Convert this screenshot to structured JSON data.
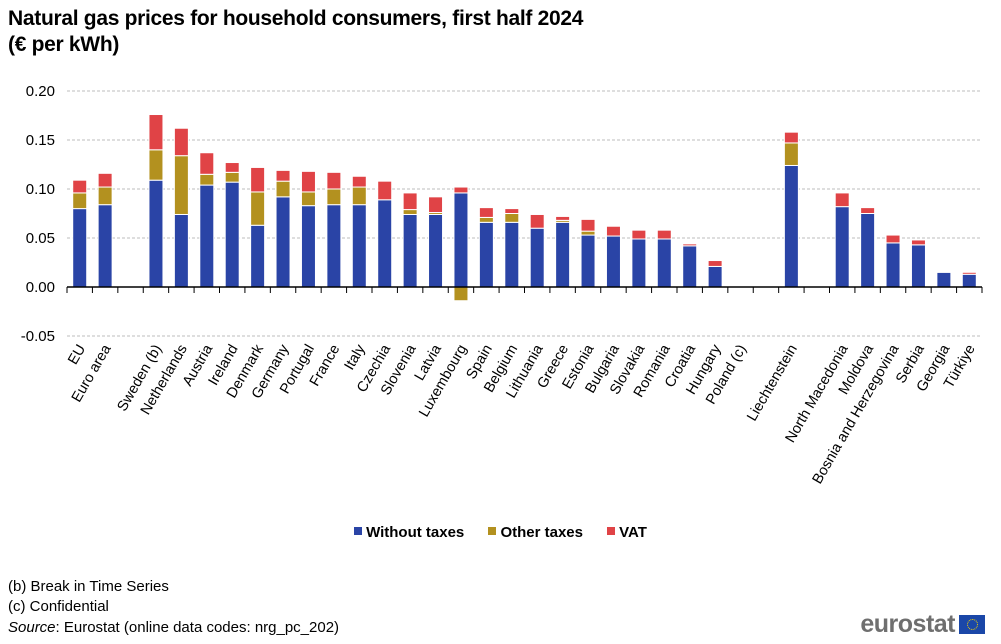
{
  "title_line1": "Natural gas prices for household consumers, first half 2024",
  "title_line2": "(€ per kWh)",
  "legend": [
    {
      "label": "Without taxes",
      "color": "#2a44a6"
    },
    {
      "label": "Other taxes",
      "color": "#b3911f"
    },
    {
      "label": "VAT",
      "color": "#e04346"
    }
  ],
  "notes": {
    "b": "(b) Break in Time Series",
    "c": "(c) Confidential",
    "source_label": "Source",
    "source_text": ": Eurostat (online data codes: nrg_pc_202)"
  },
  "logo": {
    "text": "eurostat",
    "icon": "eu-flag-icon"
  },
  "chart_data": {
    "type": "bar",
    "stacked": true,
    "title": "Natural gas prices for household consumers, first half 2024 (€ per kWh)",
    "xlabel": "",
    "ylabel": "€ per kWh",
    "ylim": [
      -0.05,
      0.2
    ],
    "yticks": [
      "0.20",
      "0.15",
      "0.10",
      "0.05",
      "0.00",
      "-0.05"
    ],
    "ytick_values": [
      0.2,
      0.15,
      0.1,
      0.05,
      0.0,
      -0.05
    ],
    "grid": true,
    "legend_position": "bottom",
    "categories": [
      "EU",
      "Euro area",
      "",
      "Sweden (b)",
      "Netherlands",
      "Austria",
      "Ireland",
      "Denmark",
      "Germany",
      "Portugal",
      "France",
      "Italy",
      "Czechia",
      "Slovenia",
      "Latvia",
      "Luxembourg",
      "Spain",
      "Belgium",
      "Lithuania",
      "Greece",
      "Estonia",
      "Bulgaria",
      "Slovakia",
      "Romania",
      "Croatia",
      "Hungary",
      "Poland (c)",
      "",
      "Liechtenstein",
      "",
      "North Macedonia",
      "Moldova",
      "Bosnia and Herzegovina",
      "Serbia",
      "Georgia",
      "Türkiye"
    ],
    "series": [
      {
        "name": "Without taxes",
        "color": "#2a44a6",
        "values": [
          0.08,
          0.084,
          null,
          0.109,
          0.074,
          0.104,
          0.107,
          0.063,
          0.092,
          0.083,
          0.084,
          0.084,
          0.089,
          0.074,
          0.074,
          0.096,
          0.066,
          0.066,
          0.06,
          0.066,
          0.053,
          0.052,
          0.049,
          0.049,
          0.042,
          0.021,
          null,
          null,
          0.124,
          null,
          0.082,
          0.075,
          0.045,
          0.043,
          0.015,
          0.013
        ]
      },
      {
        "name": "Other taxes",
        "color": "#b3911f",
        "values": [
          0.016,
          0.018,
          null,
          0.031,
          0.06,
          0.011,
          0.01,
          0.034,
          0.016,
          0.014,
          0.016,
          0.018,
          0.0,
          0.005,
          0.002,
          -0.014,
          0.005,
          0.009,
          0.0,
          0.002,
          0.004,
          0.0,
          0.0,
          0.0,
          0.0,
          0.0,
          null,
          null,
          0.023,
          null,
          0.0,
          0.0,
          0.0,
          0.0,
          0.0,
          0.0
        ]
      },
      {
        "name": "VAT",
        "color": "#e04346",
        "values": [
          0.013,
          0.014,
          null,
          0.036,
          0.028,
          0.022,
          0.01,
          0.025,
          0.011,
          0.021,
          0.017,
          0.011,
          0.019,
          0.017,
          0.016,
          0.006,
          0.01,
          0.005,
          0.014,
          0.004,
          0.012,
          0.01,
          0.009,
          0.009,
          0.002,
          0.006,
          null,
          null,
          0.011,
          null,
          0.014,
          0.006,
          0.008,
          0.005,
          0.001,
          0.002
        ]
      }
    ]
  }
}
